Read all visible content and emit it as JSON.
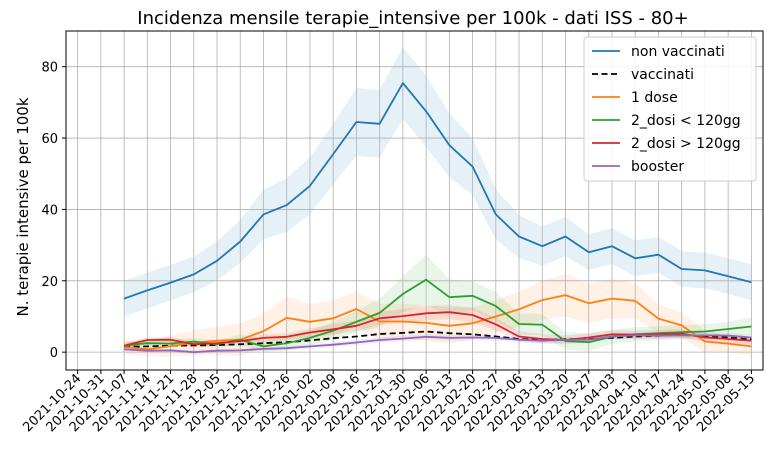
{
  "chart_data": {
    "type": "line",
    "title": "Incidenza mensile terapie_intensive per 100k - dati ISS - 80+",
    "xlabel": "",
    "ylabel": "N. terapie intensive per 100k",
    "ylim": [
      -5,
      90
    ],
    "yticks": [
      0,
      20,
      40,
      60,
      80
    ],
    "grid": true,
    "legend_position": "top-right",
    "x": [
      "2021-10-24",
      "2021-10-31",
      "2021-11-07",
      "2021-11-14",
      "2021-11-21",
      "2021-11-28",
      "2021-12-05",
      "2021-12-12",
      "2021-12-19",
      "2021-12-26",
      "2022-01-02",
      "2022-01-09",
      "2022-01-16",
      "2022-01-23",
      "2022-01-30",
      "2022-02-06",
      "2022-02-13",
      "2022-02-20",
      "2022-02-27",
      "2022-03-06",
      "2022-03-13",
      "2022-03-20",
      "2022-03-27",
      "2022-04-03",
      "2022-04-10",
      "2022-04-17",
      "2022-04-24",
      "2022-05-01",
      "2022-05-08",
      "2022-05-15"
    ],
    "series": [
      {
        "name": "non vaccinati",
        "color": "#1f77b4",
        "dash": "solid",
        "values": [
          null,
          null,
          15.0,
          17.3,
          19.5,
          21.8,
          25.6,
          31.0,
          38.6,
          41.2,
          46.6,
          55.5,
          64.5,
          64.0,
          75.4,
          67.5,
          58.0,
          52.0,
          38.6,
          32.4,
          29.7,
          32.4,
          28.0,
          29.7,
          26.3,
          27.3,
          23.3,
          22.9,
          21.3,
          19.6
        ],
        "band_halfwidth": [
          null,
          null,
          5,
          5,
          5,
          5,
          5.5,
          6,
          7,
          7.5,
          8,
          8.5,
          9.5,
          9.5,
          10,
          10,
          9,
          8,
          7,
          6,
          5.5,
          5.5,
          5,
          5,
          5,
          5,
          5,
          5,
          5,
          5
        ]
      },
      {
        "name": "vaccinati",
        "color": "#000000",
        "dash": "dashed",
        "values": [
          null,
          null,
          1.5,
          1.6,
          1.8,
          1.9,
          2.0,
          2.2,
          2.5,
          2.8,
          3.3,
          3.9,
          4.4,
          5.1,
          5.4,
          5.8,
          5.3,
          5.0,
          4.4,
          3.7,
          3.4,
          3.6,
          3.7,
          4.0,
          4.4,
          4.6,
          4.8,
          4.5,
          4.1,
          3.6
        ],
        "band_halfwidth": [
          null,
          null,
          0,
          0,
          0,
          0,
          0,
          0,
          0,
          0,
          0,
          0,
          0,
          0,
          0,
          0,
          0,
          0,
          0,
          0,
          0,
          0,
          0,
          0,
          0,
          0,
          0,
          0,
          0,
          0
        ]
      },
      {
        "name": "1 dose",
        "color": "#ff7f0e",
        "dash": "solid",
        "values": [
          null,
          null,
          1.5,
          0.8,
          1.7,
          2.6,
          3.2,
          3.5,
          5.9,
          9.6,
          8.5,
          9.5,
          12.1,
          8.6,
          8.6,
          8.2,
          7.4,
          8.1,
          10.0,
          12.0,
          14.6,
          16.0,
          13.7,
          15.0,
          14.4,
          9.4,
          7.5,
          3.0,
          2.4,
          1.6
        ],
        "band_halfwidth": [
          null,
          null,
          2,
          2,
          3,
          3.5,
          4,
          4.5,
          5,
          6,
          5,
          5,
          5,
          5,
          5,
          5,
          5,
          4.5,
          4.5,
          5,
          5.5,
          6,
          5.5,
          5.5,
          5,
          4,
          3.5,
          3,
          2.5,
          2.5
        ]
      },
      {
        "name": "2_dosi < 120gg",
        "color": "#2ca02c",
        "dash": "solid",
        "values": [
          null,
          null,
          1.8,
          2.5,
          2.4,
          3.0,
          2.2,
          3.5,
          1.6,
          2.5,
          4.0,
          6.0,
          8.5,
          11.0,
          16.3,
          20.3,
          15.4,
          15.8,
          12.9,
          7.9,
          7.7,
          3.1,
          2.8,
          4.3,
          5.0,
          5.3,
          5.6,
          5.8,
          6.5,
          7.2
        ],
        "band_halfwidth": [
          null,
          null,
          1,
          1,
          1,
          1,
          1,
          1.5,
          1.5,
          2,
          2,
          2.5,
          3,
          4,
          5,
          7,
          5,
          4,
          4,
          3,
          3,
          2.5,
          2.5,
          2,
          2,
          2,
          2,
          2,
          2,
          2.5
        ]
      },
      {
        "name": "2_dosi > 120gg",
        "color": "#d62728",
        "dash": "solid",
        "values": [
          null,
          null,
          1.8,
          3.4,
          3.5,
          2.2,
          2.5,
          3.1,
          4.0,
          4.3,
          5.5,
          6.4,
          7.4,
          9.5,
          10.1,
          10.9,
          11.2,
          10.4,
          7.8,
          4.4,
          3.7,
          3.4,
          4.1,
          5.0,
          4.9,
          5.0,
          5.2,
          4.1,
          3.7,
          3.2
        ],
        "band_halfwidth": [
          null,
          null,
          0.8,
          0.8,
          0.8,
          0.8,
          0.8,
          0.8,
          1,
          1,
          1.2,
          1.5,
          1.5,
          1.8,
          2,
          2,
          2,
          2,
          1.8,
          1.5,
          1.3,
          1.2,
          1.2,
          1.2,
          1.2,
          1.2,
          1.2,
          1.2,
          1.2,
          1.2
        ]
      },
      {
        "name": "booster",
        "color": "#9467bd",
        "dash": "solid",
        "values": [
          null,
          null,
          0.8,
          0.4,
          0.5,
          0.0,
          0.4,
          0.5,
          0.9,
          1.1,
          1.6,
          2.1,
          2.7,
          3.4,
          3.8,
          4.3,
          4.0,
          4.1,
          4.0,
          3.5,
          3.2,
          3.4,
          3.5,
          4.4,
          4.7,
          4.6,
          4.7,
          4.7,
          4.6,
          4.1
        ],
        "band_halfwidth": [
          null,
          null,
          0.5,
          0.5,
          0.5,
          0.5,
          0.5,
          0.5,
          0.5,
          0.6,
          0.6,
          0.7,
          0.8,
          0.8,
          0.8,
          0.8,
          0.8,
          0.8,
          0.8,
          0.7,
          0.7,
          0.7,
          0.7,
          0.8,
          0.8,
          0.8,
          0.8,
          0.8,
          0.8,
          0.8
        ]
      }
    ]
  }
}
